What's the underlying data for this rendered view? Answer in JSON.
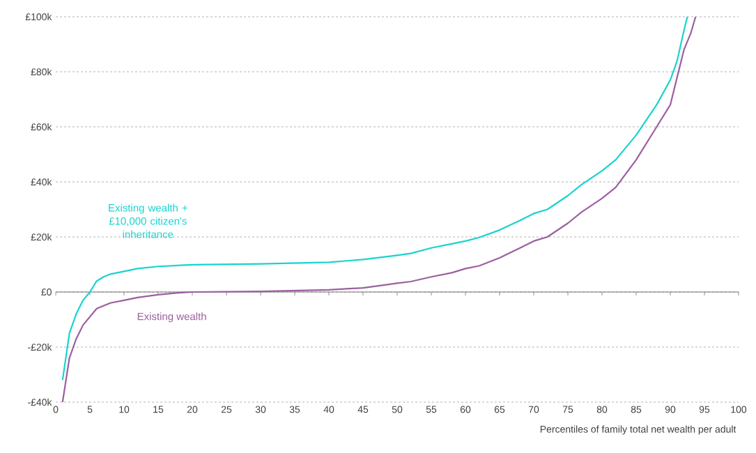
{
  "chart_data": {
    "type": "line",
    "xlabel": "Percentiles of family total net wealth per adult",
    "xlim": [
      0,
      100
    ],
    "xticks": [
      0,
      5,
      10,
      15,
      20,
      25,
      30,
      35,
      40,
      45,
      50,
      55,
      60,
      65,
      70,
      75,
      80,
      85,
      90,
      95,
      100
    ],
    "ylim": [
      -40,
      100
    ],
    "yticks": [
      {
        "value": -40,
        "label": "-£40k"
      },
      {
        "value": -20,
        "label": "-£20k"
      },
      {
        "value": 0,
        "label": "£0"
      },
      {
        "value": 20,
        "label": "£20k"
      },
      {
        "value": 40,
        "label": "£40k"
      },
      {
        "value": 60,
        "label": "£60k"
      },
      {
        "value": 80,
        "label": "£80k"
      },
      {
        "value": 100,
        "label": "£100k"
      }
    ],
    "grid": "y",
    "legend": false,
    "marker": "none",
    "line_style": "solid",
    "series": [
      {
        "name": "Existing wealth + £10,000 citizen's inheritance",
        "color": "#19d3cf",
        "x": [
          1,
          2,
          3,
          4,
          5,
          6,
          7,
          8,
          10,
          12,
          15,
          20,
          30,
          40,
          45,
          50,
          52,
          55,
          58,
          60,
          62,
          65,
          68,
          70,
          72,
          75,
          77,
          80,
          82,
          85,
          88,
          90,
          91,
          92,
          92.5
        ],
        "values": [
          -32,
          -15,
          -8,
          -3,
          0,
          4,
          5.5,
          6.5,
          7.5,
          8.5,
          9.3,
          9.9,
          10.2,
          10.8,
          11.8,
          13.3,
          14,
          16,
          17.5,
          18.5,
          19.8,
          22.5,
          26,
          28.5,
          30,
          35,
          39,
          44,
          48,
          57,
          68,
          77,
          84,
          95,
          100
        ]
      },
      {
        "name": "Existing wealth",
        "color": "#9b5fa0",
        "x": [
          1,
          2,
          3,
          4,
          5,
          6,
          8,
          10,
          12,
          15,
          18,
          20,
          30,
          40,
          45,
          48,
          50,
          52,
          55,
          58,
          60,
          62,
          65,
          68,
          70,
          72,
          75,
          77,
          80,
          82,
          85,
          88,
          90,
          91,
          92,
          93,
          93.7
        ],
        "values": [
          -40,
          -24,
          -17,
          -12,
          -9,
          -6,
          -4,
          -3,
          -2,
          -1,
          -0.3,
          0,
          0.2,
          0.8,
          1.5,
          2.5,
          3.2,
          3.8,
          5.5,
          7,
          8.5,
          9.5,
          12.4,
          16,
          18.5,
          20,
          25,
          29,
          34,
          38,
          48,
          60,
          68,
          78,
          88,
          94,
          100
        ]
      }
    ]
  }
}
